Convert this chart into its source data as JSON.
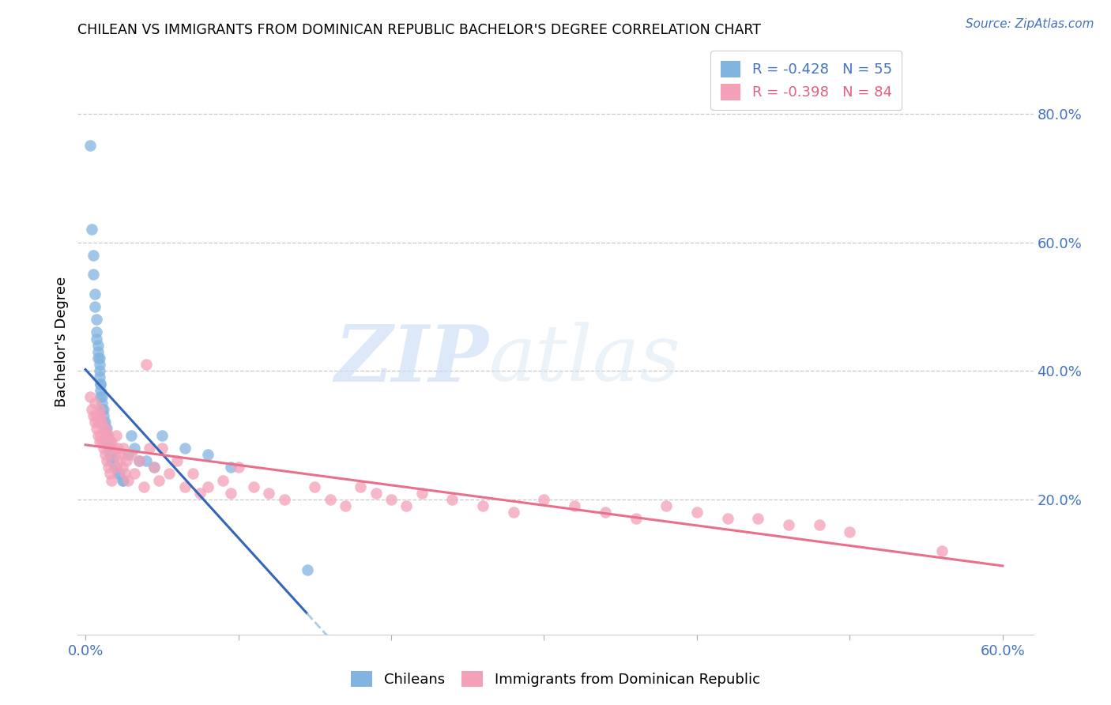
{
  "title": "CHILEAN VS IMMIGRANTS FROM DOMINICAN REPUBLIC BACHELOR'S DEGREE CORRELATION CHART",
  "source": "Source: ZipAtlas.com",
  "ylabel_left": "Bachelor's Degree",
  "x_tick_positions": [
    0.0,
    0.1,
    0.2,
    0.3,
    0.4,
    0.5,
    0.6
  ],
  "x_tick_labels": [
    "0.0%",
    "",
    "",
    "",
    "",
    "",
    "60.0%"
  ],
  "y_ticks_right": [
    0.2,
    0.4,
    0.6,
    0.8
  ],
  "y_tick_labels_right": [
    "20.0%",
    "40.0%",
    "60.0%",
    "80.0%"
  ],
  "xlim": [
    -0.005,
    0.62
  ],
  "ylim": [
    -0.01,
    0.9
  ],
  "blue_R": -0.428,
  "blue_N": 55,
  "pink_R": -0.398,
  "pink_N": 84,
  "blue_color": "#82b4e0",
  "pink_color": "#f4a0b8",
  "blue_line_color": "#3366bb",
  "pink_line_color": "#e8708a",
  "dashed_line_color": "#a8cce8",
  "legend_label_blue": "Chileans",
  "legend_label_pink": "Immigrants from Dominican Republic",
  "watermark_zip": "ZIP",
  "watermark_atlas": "atlas",
  "blue_points_x": [
    0.003,
    0.004,
    0.005,
    0.005,
    0.006,
    0.006,
    0.007,
    0.007,
    0.007,
    0.008,
    0.008,
    0.008,
    0.009,
    0.009,
    0.009,
    0.009,
    0.01,
    0.01,
    0.01,
    0.01,
    0.011,
    0.011,
    0.011,
    0.012,
    0.012,
    0.012,
    0.013,
    0.013,
    0.014,
    0.014,
    0.014,
    0.015,
    0.015,
    0.016,
    0.016,
    0.017,
    0.017,
    0.018,
    0.019,
    0.02,
    0.021,
    0.022,
    0.024,
    0.025,
    0.028,
    0.03,
    0.032,
    0.035,
    0.04,
    0.045,
    0.05,
    0.065,
    0.08,
    0.095,
    0.145
  ],
  "blue_points_y": [
    0.75,
    0.62,
    0.58,
    0.55,
    0.52,
    0.5,
    0.48,
    0.46,
    0.45,
    0.44,
    0.43,
    0.42,
    0.42,
    0.41,
    0.4,
    0.39,
    0.38,
    0.38,
    0.37,
    0.36,
    0.36,
    0.35,
    0.34,
    0.34,
    0.33,
    0.32,
    0.32,
    0.31,
    0.31,
    0.3,
    0.29,
    0.29,
    0.28,
    0.28,
    0.27,
    0.27,
    0.26,
    0.26,
    0.25,
    0.25,
    0.24,
    0.24,
    0.23,
    0.23,
    0.27,
    0.3,
    0.28,
    0.26,
    0.26,
    0.25,
    0.3,
    0.28,
    0.27,
    0.25,
    0.09
  ],
  "pink_points_x": [
    0.003,
    0.004,
    0.005,
    0.006,
    0.006,
    0.007,
    0.007,
    0.008,
    0.008,
    0.009,
    0.009,
    0.009,
    0.01,
    0.01,
    0.011,
    0.011,
    0.012,
    0.012,
    0.013,
    0.013,
    0.014,
    0.014,
    0.015,
    0.015,
    0.016,
    0.016,
    0.017,
    0.017,
    0.018,
    0.019,
    0.02,
    0.02,
    0.021,
    0.022,
    0.023,
    0.024,
    0.025,
    0.026,
    0.027,
    0.028,
    0.03,
    0.032,
    0.035,
    0.038,
    0.04,
    0.042,
    0.045,
    0.048,
    0.05,
    0.055,
    0.06,
    0.065,
    0.07,
    0.075,
    0.08,
    0.09,
    0.095,
    0.1,
    0.11,
    0.12,
    0.13,
    0.15,
    0.16,
    0.17,
    0.18,
    0.19,
    0.2,
    0.21,
    0.22,
    0.24,
    0.26,
    0.28,
    0.3,
    0.32,
    0.34,
    0.36,
    0.38,
    0.4,
    0.42,
    0.44,
    0.46,
    0.48,
    0.5,
    0.56
  ],
  "pink_points_y": [
    0.36,
    0.34,
    0.33,
    0.35,
    0.32,
    0.33,
    0.31,
    0.32,
    0.3,
    0.34,
    0.32,
    0.29,
    0.33,
    0.3,
    0.32,
    0.29,
    0.31,
    0.28,
    0.31,
    0.27,
    0.3,
    0.26,
    0.3,
    0.25,
    0.29,
    0.24,
    0.29,
    0.23,
    0.28,
    0.27,
    0.3,
    0.25,
    0.28,
    0.26,
    0.27,
    0.25,
    0.28,
    0.24,
    0.26,
    0.23,
    0.27,
    0.24,
    0.26,
    0.22,
    0.41,
    0.28,
    0.25,
    0.23,
    0.28,
    0.24,
    0.26,
    0.22,
    0.24,
    0.21,
    0.22,
    0.23,
    0.21,
    0.25,
    0.22,
    0.21,
    0.2,
    0.22,
    0.2,
    0.19,
    0.22,
    0.21,
    0.2,
    0.19,
    0.21,
    0.2,
    0.19,
    0.18,
    0.2,
    0.19,
    0.18,
    0.17,
    0.19,
    0.18,
    0.17,
    0.17,
    0.16,
    0.16,
    0.15,
    0.12
  ]
}
